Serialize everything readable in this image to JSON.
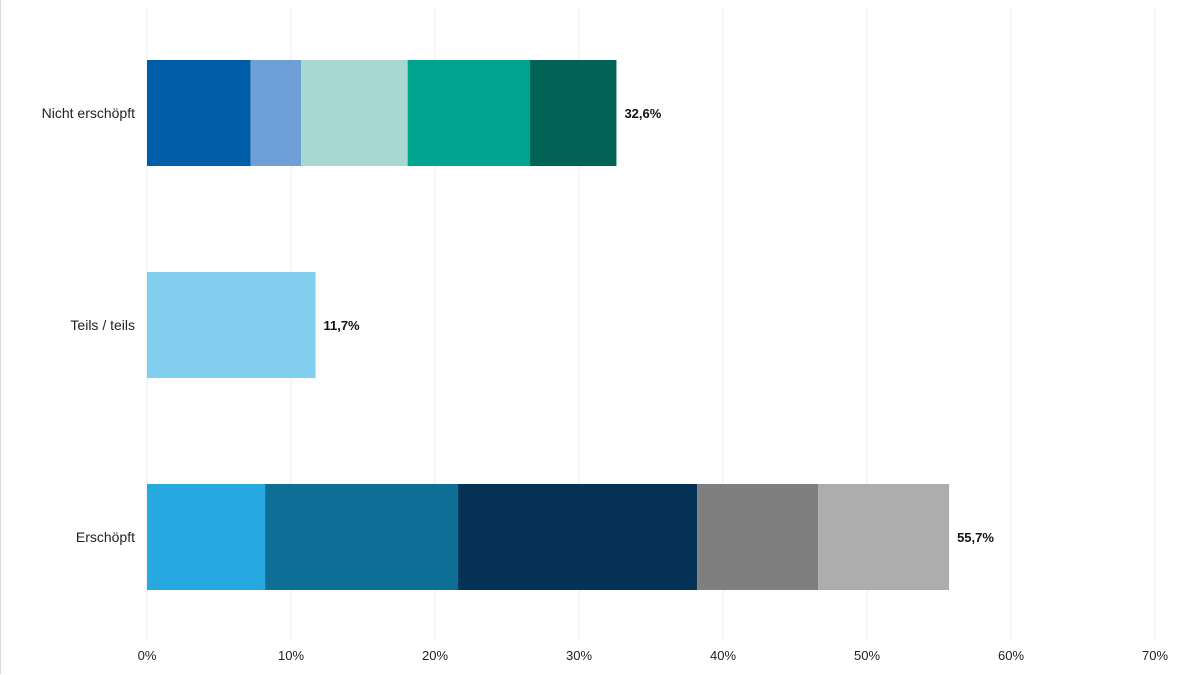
{
  "chart_data": {
    "type": "bar",
    "orientation": "horizontal",
    "stacked": true,
    "categories": [
      "Nicht erschöpft",
      "Teils / teils",
      "Erschöpft"
    ],
    "bars": [
      {
        "category": "Nicht erschöpft",
        "total_label": "32,6%",
        "segments": [
          {
            "value": 7.2,
            "color": "#005DA8"
          },
          {
            "value": 3.5,
            "color": "#6E9FD6"
          },
          {
            "value": 7.4,
            "color": "#A8D8D2"
          },
          {
            "value": 8.5,
            "color": "#00A48F"
          },
          {
            "value": 6.0,
            "color": "#006356"
          }
        ]
      },
      {
        "category": "Teils / teils",
        "total_label": "11,7%",
        "segments": [
          {
            "value": 11.7,
            "color": "#82CEEF"
          }
        ]
      },
      {
        "category": "Erschöpft",
        "total_label": "55,7%",
        "segments": [
          {
            "value": 8.2,
            "color": "#25A9E0"
          },
          {
            "value": 13.4,
            "color": "#0E6E96"
          },
          {
            "value": 16.6,
            "color": "#073257"
          },
          {
            "value": 8.4,
            "color": "#7F7F7F"
          },
          {
            "value": 9.1,
            "color": "#ADADAE"
          }
        ]
      }
    ],
    "xlim": [
      0,
      70
    ],
    "xticks": [
      "0%",
      "10%",
      "20%",
      "30%",
      "40%",
      "50%",
      "60%",
      "70%"
    ],
    "grid": "vertical",
    "legend": "none"
  }
}
